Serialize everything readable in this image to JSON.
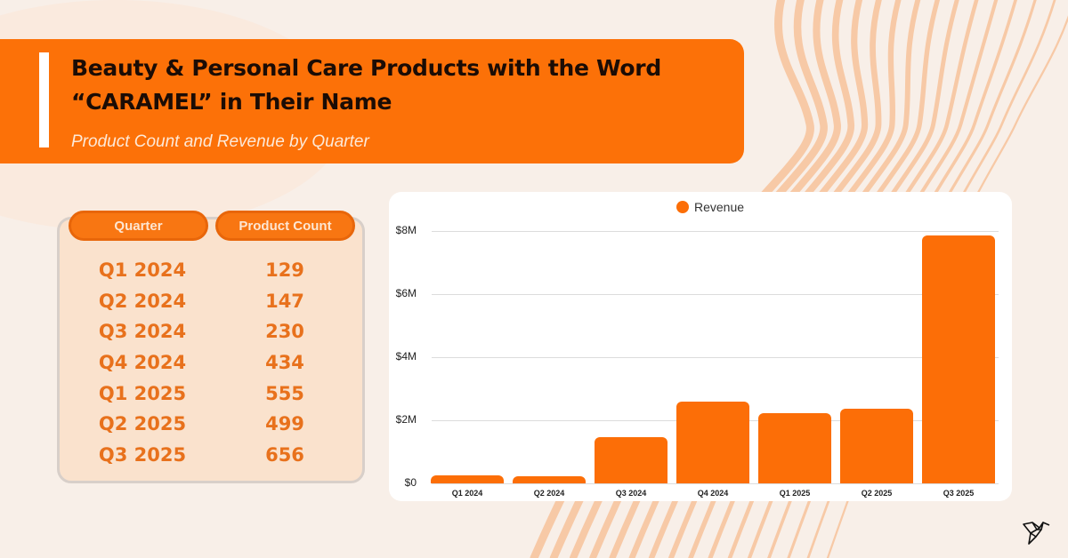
{
  "header": {
    "title": "Beauty & Personal Care Products with the Word “CARAMEL” in Their Name",
    "subtitle": "Product Count and Revenue by Quarter"
  },
  "table": {
    "columns": [
      "Quarter",
      "Product Count"
    ],
    "rows": [
      {
        "quarter": "Q1 2024",
        "count": "129"
      },
      {
        "quarter": "Q2 2024",
        "count": "147"
      },
      {
        "quarter": "Q3 2024",
        "count": "230"
      },
      {
        "quarter": "Q4 2024",
        "count": "434"
      },
      {
        "quarter": "Q1 2025",
        "count": "555"
      },
      {
        "quarter": "Q2 2025",
        "count": "499"
      },
      {
        "quarter": "Q3 2025",
        "count": "656"
      }
    ]
  },
  "colors": {
    "accent": "#fc7108",
    "bar": "#fc6e07",
    "table_text": "#e8711c",
    "background": "#f8efe8"
  },
  "logo": {
    "icon": "hummingbird-icon"
  },
  "chart_data": [
    {
      "type": "table",
      "title": "Product Count by Quarter",
      "columns": [
        "Quarter",
        "Product Count"
      ],
      "categories": [
        "Q1 2024",
        "Q2 2024",
        "Q3 2024",
        "Q4 2024",
        "Q1 2025",
        "Q2 2025",
        "Q3 2025"
      ],
      "values": [
        129,
        147,
        230,
        434,
        555,
        499,
        656
      ]
    },
    {
      "type": "bar",
      "title": "",
      "categories": [
        "Q1 2024",
        "Q2 2024",
        "Q3 2024",
        "Q4 2024",
        "Q1 2025",
        "Q2 2025",
        "Q3 2025"
      ],
      "series": [
        {
          "name": "Revenue",
          "values": [
            250000,
            230000,
            1470000,
            2600000,
            2220000,
            2370000,
            7860000
          ]
        }
      ],
      "legend": [
        "Revenue"
      ],
      "legend_position": "top",
      "xlabel": "",
      "ylabel": "",
      "ylim": [
        0,
        8000000
      ],
      "yticks": [
        "$0",
        "$2M",
        "$4M",
        "$6M",
        "$8M"
      ],
      "grid": true
    }
  ]
}
